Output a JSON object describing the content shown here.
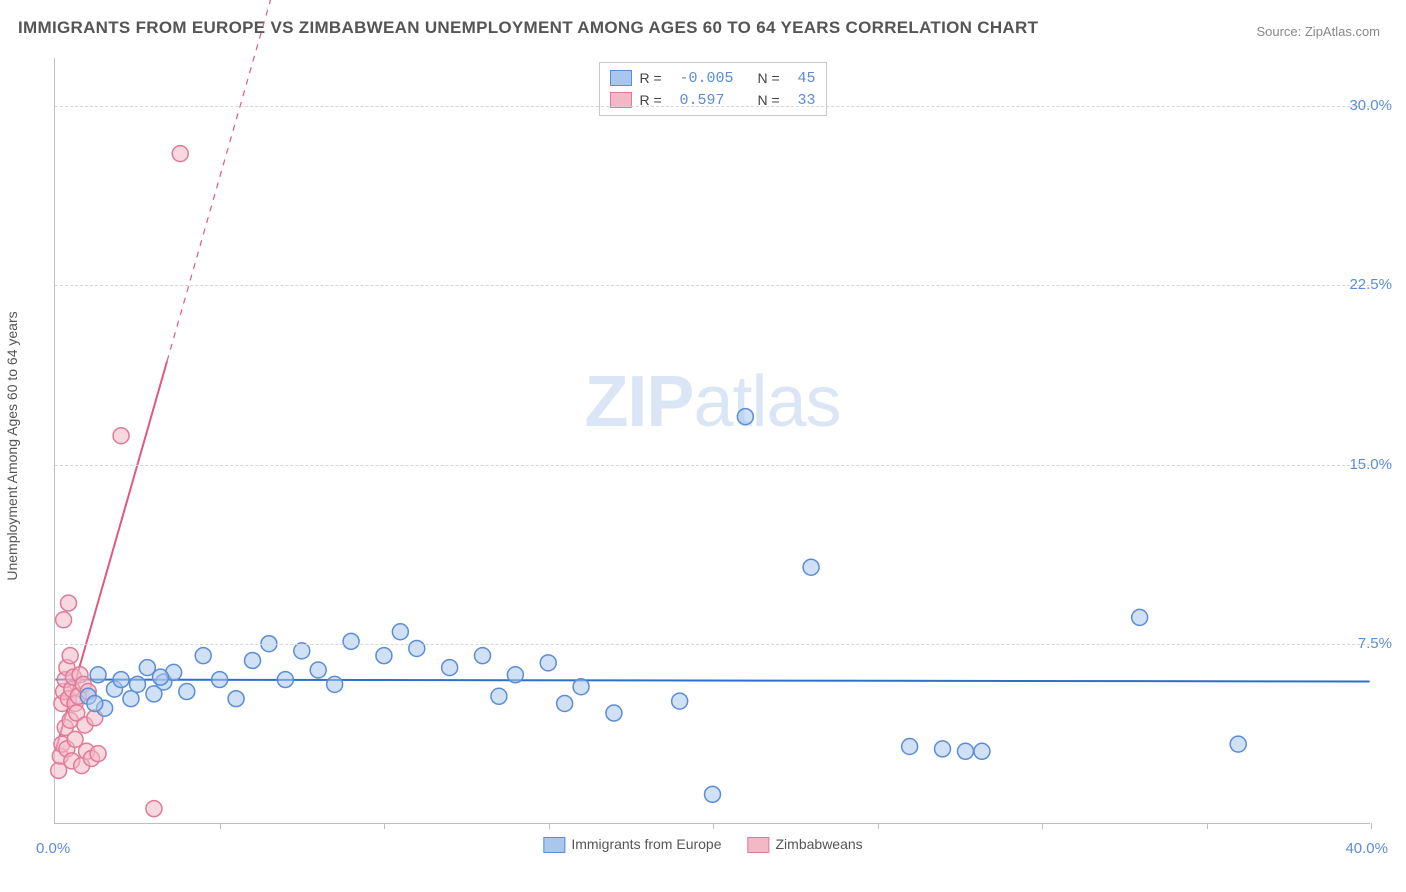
{
  "title": "IMMIGRANTS FROM EUROPE VS ZIMBABWEAN UNEMPLOYMENT AMONG AGES 60 TO 64 YEARS CORRELATION CHART",
  "source": "Source: ZipAtlas.com",
  "watermark_bold": "ZIP",
  "watermark_light": "atlas",
  "ylabel": "Unemployment Among Ages 60 to 64 years",
  "chart": {
    "type": "scatter",
    "xlim": [
      0,
      40
    ],
    "ylim": [
      0,
      32
    ],
    "y_ticks": [
      7.5,
      15.0,
      22.5,
      30.0
    ],
    "y_tick_labels": [
      "7.5%",
      "15.0%",
      "22.5%",
      "30.0%"
    ],
    "x_ticks": [
      5,
      10,
      15,
      20,
      25,
      30,
      35,
      40
    ],
    "x_origin_label": "0.0%",
    "x_max_label": "40.0%",
    "background_color": "#ffffff",
    "grid_color": "#d6d6d6",
    "marker_radius": 8,
    "marker_stroke_width": 1.5,
    "series": [
      {
        "name": "Immigrants from Europe",
        "fill": "#a9c7ed",
        "stroke": "#5b8dd6",
        "fill_opacity": 0.55,
        "R": "-0.005",
        "N": "45",
        "trend": {
          "slope": -0.002,
          "intercept": 6.0,
          "x0": 0,
          "x1": 40,
          "dash": false,
          "color": "#2f6fc9",
          "width": 2
        },
        "points": [
          [
            1.0,
            5.3
          ],
          [
            1.3,
            6.2
          ],
          [
            1.5,
            4.8
          ],
          [
            1.8,
            5.6
          ],
          [
            2.0,
            6.0
          ],
          [
            2.3,
            5.2
          ],
          [
            2.5,
            5.8
          ],
          [
            2.8,
            6.5
          ],
          [
            3.0,
            5.4
          ],
          [
            3.3,
            5.9
          ],
          [
            3.6,
            6.3
          ],
          [
            4.0,
            5.5
          ],
          [
            4.5,
            7.0
          ],
          [
            5.0,
            6.0
          ],
          [
            5.5,
            5.2
          ],
          [
            6.0,
            6.8
          ],
          [
            6.5,
            7.5
          ],
          [
            7.0,
            6.0
          ],
          [
            7.5,
            7.2
          ],
          [
            8.0,
            6.4
          ],
          [
            9.0,
            7.6
          ],
          [
            10.0,
            7.0
          ],
          [
            10.5,
            8.0
          ],
          [
            11.0,
            7.3
          ],
          [
            12.0,
            6.5
          ],
          [
            13.0,
            7.0
          ],
          [
            13.5,
            5.3
          ],
          [
            14.0,
            6.2
          ],
          [
            15.0,
            6.7
          ],
          [
            15.5,
            5.0
          ],
          [
            16.0,
            5.7
          ],
          [
            17.0,
            4.6
          ],
          [
            19.0,
            5.1
          ],
          [
            20.0,
            1.2
          ],
          [
            21.0,
            17.0
          ],
          [
            23.0,
            10.7
          ],
          [
            26.0,
            3.2
          ],
          [
            27.0,
            3.1
          ],
          [
            27.7,
            3.0
          ],
          [
            28.2,
            3.0
          ],
          [
            33.0,
            8.6
          ],
          [
            36.0,
            3.3
          ],
          [
            1.2,
            5.0
          ],
          [
            3.2,
            6.1
          ],
          [
            8.5,
            5.8
          ]
        ]
      },
      {
        "name": "Zimbabweans",
        "fill": "#f2b8c6",
        "stroke": "#e17a98",
        "fill_opacity": 0.55,
        "R": "0.597",
        "N": "33",
        "trend": {
          "slope": 4.8,
          "intercept": 3.0,
          "x0": 0,
          "x1_solid": 3.4,
          "x1_dash": 7.0,
          "color": "#e05a80",
          "width": 2
        },
        "points": [
          [
            0.1,
            2.2
          ],
          [
            0.15,
            2.8
          ],
          [
            0.2,
            3.3
          ],
          [
            0.2,
            5.0
          ],
          [
            0.25,
            5.5
          ],
          [
            0.25,
            8.5
          ],
          [
            0.3,
            4.0
          ],
          [
            0.3,
            6.0
          ],
          [
            0.35,
            3.1
          ],
          [
            0.35,
            6.5
          ],
          [
            0.4,
            5.2
          ],
          [
            0.4,
            9.2
          ],
          [
            0.45,
            4.3
          ],
          [
            0.45,
            7.0
          ],
          [
            0.5,
            5.6
          ],
          [
            0.5,
            2.6
          ],
          [
            0.55,
            6.1
          ],
          [
            0.6,
            3.5
          ],
          [
            0.6,
            5.0
          ],
          [
            0.65,
            4.6
          ],
          [
            0.7,
            5.3
          ],
          [
            0.75,
            6.2
          ],
          [
            0.8,
            2.4
          ],
          [
            0.85,
            5.8
          ],
          [
            0.9,
            4.1
          ],
          [
            0.95,
            3.0
          ],
          [
            1.0,
            5.5
          ],
          [
            1.1,
            2.7
          ],
          [
            1.2,
            4.4
          ],
          [
            1.3,
            2.9
          ],
          [
            2.0,
            16.2
          ],
          [
            3.0,
            0.6
          ],
          [
            3.8,
            28.0
          ]
        ]
      }
    ]
  },
  "legend_top": {
    "rows": [
      {
        "swatch_fill": "#a9c7ed",
        "swatch_stroke": "#5b8dd6",
        "R_lbl": "R =",
        "R_val": "-0.005",
        "N_lbl": "N =",
        "N_val": "45"
      },
      {
        "swatch_fill": "#f2b8c6",
        "swatch_stroke": "#e17a98",
        "R_lbl": "R =",
        "R_val": " 0.597",
        "N_lbl": "N =",
        "N_val": "33"
      }
    ]
  },
  "legend_bottom": {
    "items": [
      {
        "swatch_fill": "#a9c7ed",
        "swatch_stroke": "#5b8dd6",
        "label": "Immigrants from Europe"
      },
      {
        "swatch_fill": "#f2b8c6",
        "swatch_stroke": "#e17a98",
        "label": "Zimbabweans"
      }
    ]
  }
}
